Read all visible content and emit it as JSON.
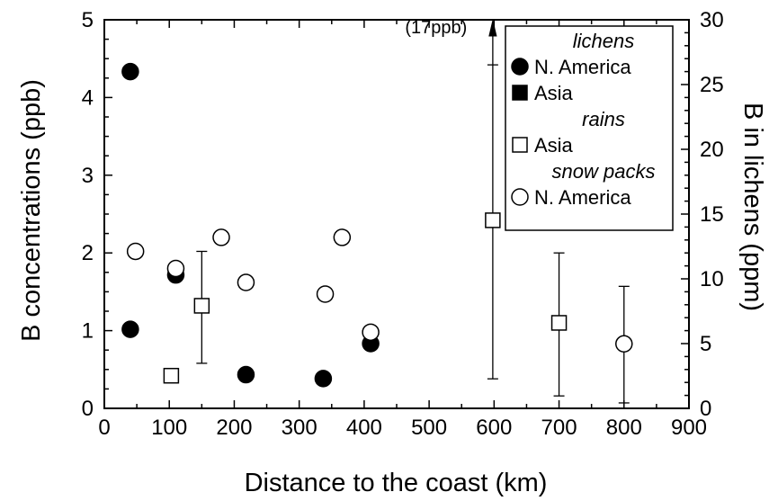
{
  "chart_data": {
    "type": "scatter",
    "xlabel": "Distance to the coast (km)",
    "ylabel": "B concentrations (ppb)",
    "y2label": "B in lichens (ppm)",
    "xlim": [
      0,
      900
    ],
    "ylim": [
      0,
      5
    ],
    "y2lim": [
      0,
      30
    ],
    "xticks": [
      "0",
      "100",
      "200",
      "300",
      "400",
      "500",
      "600",
      "700",
      "800",
      "900"
    ],
    "yticks": [
      "0",
      "1",
      "2",
      "3",
      "4",
      "5"
    ],
    "y2ticks": [
      "0",
      "5",
      "10",
      "15",
      "20",
      "25",
      "30"
    ],
    "grid": false,
    "legend_position": "top-right",
    "legend": [
      {
        "type": "heading",
        "text": "lichens"
      },
      {
        "type": "entry",
        "marker": "filled-circle",
        "text": "N. America"
      },
      {
        "type": "entry",
        "marker": "filled-square",
        "text": "Asia"
      },
      {
        "type": "heading",
        "text": "rains"
      },
      {
        "type": "entry",
        "marker": "open-square",
        "text": "Asia"
      },
      {
        "type": "heading",
        "text": "snow packs"
      },
      {
        "type": "entry",
        "marker": "open-circle",
        "text": "N. America"
      }
    ],
    "annotations": [
      {
        "text": "(17ppb)",
        "x": 600,
        "y": 4.85
      }
    ],
    "series": [
      {
        "marker": "filled-circle",
        "axis": "right",
        "points": [
          {
            "x": 40,
            "y": 26.0
          },
          {
            "x": 40,
            "y": 6.1
          },
          {
            "x": 110,
            "y": 10.3
          },
          {
            "x": 218,
            "y": 2.6
          },
          {
            "x": 337,
            "y": 2.3
          },
          {
            "x": 410,
            "y": 5.0
          }
        ]
      },
      {
        "marker": "open-square",
        "axis": "left",
        "points": [
          {
            "x": 103,
            "y": 0.42
          },
          {
            "x": 150,
            "y": 1.32,
            "err_low": 0.58,
            "err_high": 2.02
          },
          {
            "x": 598,
            "y": 2.42,
            "err_low": 0.38,
            "err_high": 4.42,
            "arrow_to": 5.0
          },
          {
            "x": 700,
            "y": 1.1,
            "err_low": 0.16,
            "err_high": 2.0
          }
        ]
      },
      {
        "marker": "open-circle",
        "axis": "left",
        "points": [
          {
            "x": 48,
            "y": 2.02
          },
          {
            "x": 110,
            "y": 1.8
          },
          {
            "x": 180,
            "y": 2.2
          },
          {
            "x": 218,
            "y": 1.62
          },
          {
            "x": 340,
            "y": 1.47
          },
          {
            "x": 366,
            "y": 2.2
          },
          {
            "x": 410,
            "y": 0.98
          },
          {
            "x": 800,
            "y": 0.83,
            "err_low": 0.07,
            "err_high": 1.57
          }
        ]
      }
    ]
  }
}
